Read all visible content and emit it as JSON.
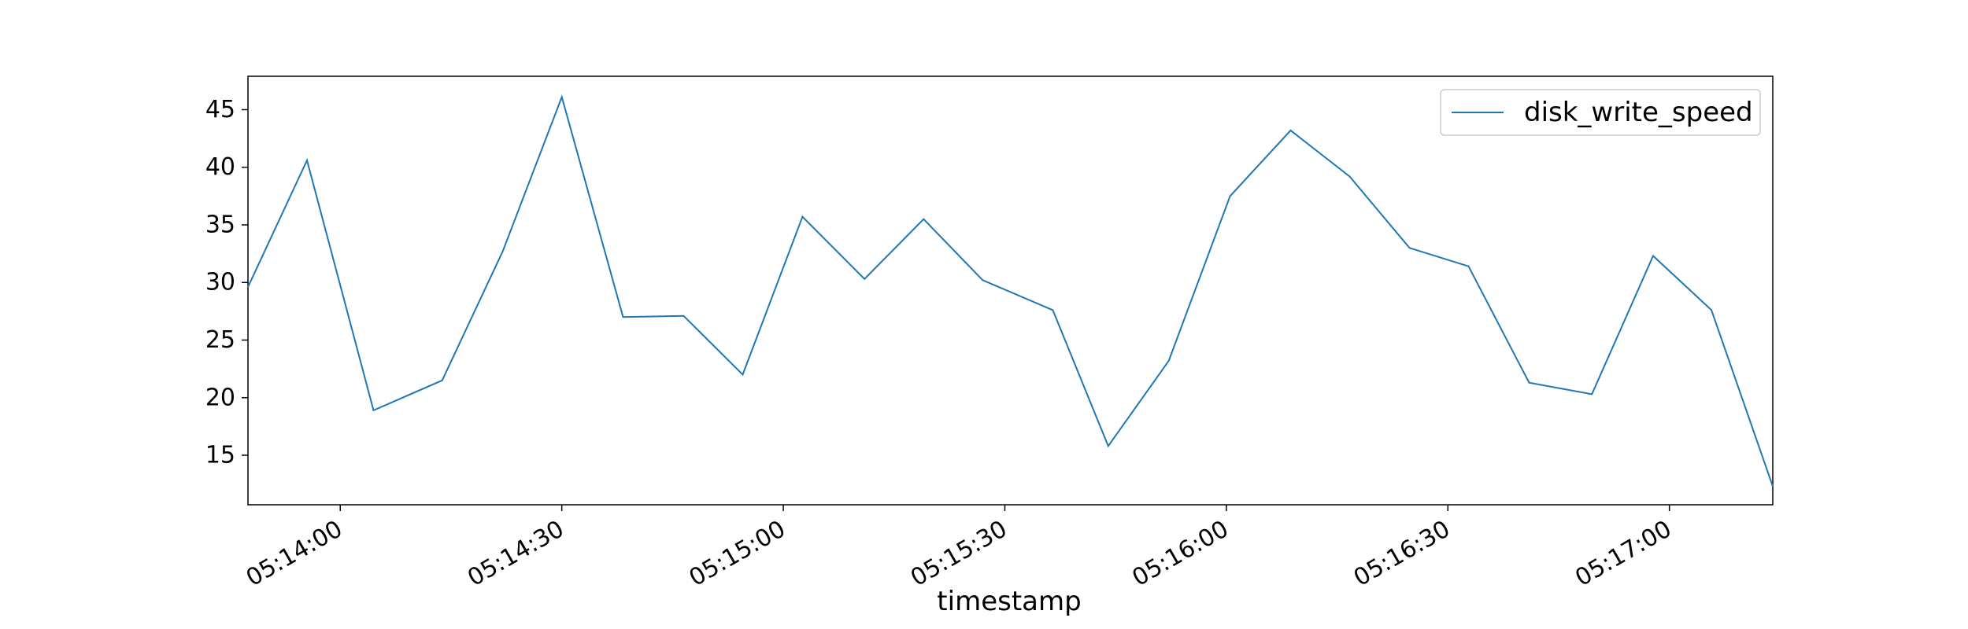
{
  "chart_data": {
    "type": "line",
    "title": "",
    "xlabel": "timestamp",
    "ylabel": "",
    "x_tick_labels": [
      "05:14:00",
      "05:14:30",
      "05:15:00",
      "05:15:30",
      "05:16:00",
      "05:16:30",
      "05:17:00"
    ],
    "y_tick_labels": [
      "15",
      "20",
      "25",
      "30",
      "35",
      "40",
      "45"
    ],
    "xlim": [
      "05:13:47.5",
      "05:17:14"
    ],
    "ylim": [
      10.7,
      47.9
    ],
    "grid": false,
    "legend_position": "upper right",
    "series": [
      {
        "name": "disk_write_speed",
        "color": "#1f77b4",
        "x": [
          "05:13:47.5",
          "05:13:55.5",
          "05:14:04.5",
          "05:14:13.8",
          "05:14:22",
          "05:14:30",
          "05:14:38.3",
          "05:14:46.5",
          "05:14:54.5",
          "05:15:02.6",
          "05:15:11",
          "05:15:19",
          "05:15:27",
          "05:15:36.5",
          "05:15:44",
          "05:15:52.2",
          "05:16:00.5",
          "05:16:08.7",
          "05:16:16.7",
          "05:16:24.8",
          "05:16:32.8",
          "05:16:41",
          "05:16:49.5",
          "05:16:57.8",
          "05:17:05.7",
          "05:17:14"
        ],
        "y": [
          29.6,
          40.6,
          18.9,
          21.5,
          32.7,
          46.1,
          27.0,
          27.1,
          22.0,
          35.7,
          30.3,
          35.5,
          30.2,
          27.6,
          15.8,
          23.2,
          37.5,
          43.2,
          39.2,
          33.0,
          31.4,
          21.3,
          20.3,
          32.3,
          27.6,
          12.3
        ]
      }
    ]
  }
}
